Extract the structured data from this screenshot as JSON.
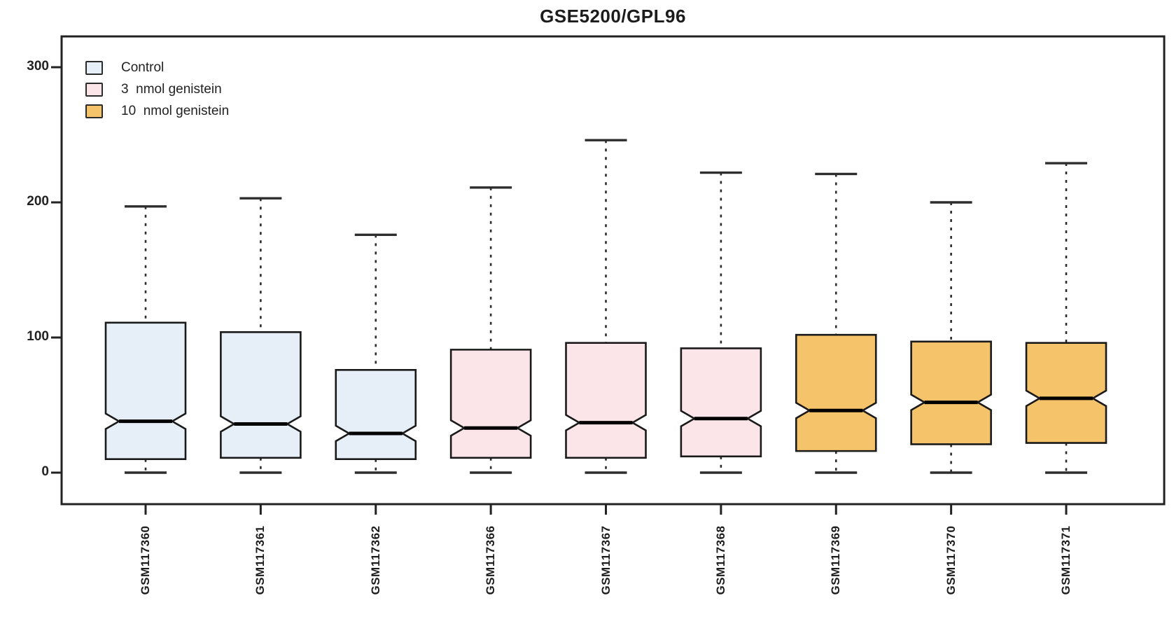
{
  "chart_data": {
    "type": "boxplot",
    "title": "GSE5200/GPL96",
    "xlabel": "",
    "ylabel": "",
    "ylim": [
      -25,
      325
    ],
    "yticks": [
      0,
      100,
      200,
      300
    ],
    "ytick_labels": [
      "0",
      "100",
      "200",
      "300"
    ],
    "grid": false,
    "notched": true,
    "legend_position": "top-left",
    "frame_color": "#222222",
    "whisker_color": "#2d2d2d",
    "box_stroke_color": "#1a1a1a",
    "median_color": "#000000",
    "categories": [
      "GSM117360",
      "GSM117361",
      "GSM117362",
      "GSM117366",
      "GSM117367",
      "GSM117368",
      "GSM117369",
      "GSM117370",
      "GSM117371"
    ],
    "groups": [
      {
        "label": "Control",
        "fill": "#e6eff8"
      },
      {
        "label": "3  nmol genistein",
        "fill": "#fbe5e8"
      },
      {
        "label": "10  nmol genistein",
        "fill": "#f5c369"
      }
    ],
    "series": [
      {
        "category": "GSM117360",
        "group": 0,
        "whisker_low": 0,
        "q1": 10,
        "median": 38,
        "q3": 111,
        "whisker_high": 197
      },
      {
        "category": "GSM117361",
        "group": 0,
        "whisker_low": 0,
        "q1": 11,
        "median": 36,
        "q3": 104,
        "whisker_high": 203
      },
      {
        "category": "GSM117362",
        "group": 0,
        "whisker_low": 0,
        "q1": 10,
        "median": 29,
        "q3": 76,
        "whisker_high": 176
      },
      {
        "category": "GSM117366",
        "group": 1,
        "whisker_low": 0,
        "q1": 11,
        "median": 33,
        "q3": 91,
        "whisker_high": 211
      },
      {
        "category": "GSM117367",
        "group": 1,
        "whisker_low": 0,
        "q1": 11,
        "median": 37,
        "q3": 96,
        "whisker_high": 246
      },
      {
        "category": "GSM117368",
        "group": 1,
        "whisker_low": 0,
        "q1": 12,
        "median": 40,
        "q3": 92,
        "whisker_high": 222
      },
      {
        "category": "GSM117369",
        "group": 2,
        "whisker_low": 0,
        "q1": 16,
        "median": 46,
        "q3": 102,
        "whisker_high": 221
      },
      {
        "category": "GSM117370",
        "group": 2,
        "whisker_low": 0,
        "q1": 21,
        "median": 52,
        "q3": 97,
        "whisker_high": 200
      },
      {
        "category": "GSM117371",
        "group": 2,
        "whisker_low": 0,
        "q1": 22,
        "median": 55,
        "q3": 96,
        "whisker_high": 229
      }
    ]
  }
}
